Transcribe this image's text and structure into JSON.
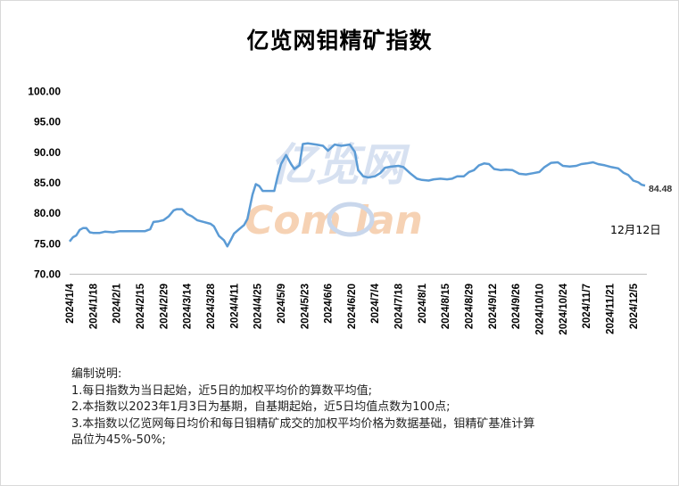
{
  "chart_data": {
    "type": "line",
    "title": "亿览网钼精矿指数",
    "xlabel": "",
    "ylabel": "",
    "ylim": [
      70,
      100
    ],
    "yticks": [
      "100.00",
      "95.00",
      "90.00",
      "85.00",
      "80.00",
      "75.00",
      "70.00"
    ],
    "xticks": [
      "2024/1/4",
      "2024/1/18",
      "2024/2/1",
      "2024/2/15",
      "2024/2/29",
      "2024/3/14",
      "2024/3/28",
      "2024/4/11",
      "2024/4/25",
      "2024/5/9",
      "2024/5/23",
      "2024/6/6",
      "2024/6/20",
      "2024/7/4",
      "2024/7/18",
      "2024/8/1",
      "2024/8/15",
      "2024/8/29",
      "2024/9/12",
      "2024/9/26",
      "2024/10/10",
      "2024/10/24",
      "2024/11/7",
      "2024/11/21",
      "2024/12/5"
    ],
    "grid": false,
    "line_color": "#5b9bd5",
    "series": [
      {
        "name": "",
        "points": [
          [
            "2024/1/4",
            75.3
          ],
          [
            "2024/1/6",
            76.0
          ],
          [
            "2024/1/8",
            76.3
          ],
          [
            "2024/1/10",
            77.2
          ],
          [
            "2024/1/12",
            77.5
          ],
          [
            "2024/1/14",
            77.5
          ],
          [
            "2024/1/16",
            76.8
          ],
          [
            "2024/1/18",
            76.7
          ],
          [
            "2024/1/22",
            76.7
          ],
          [
            "2024/1/25",
            76.9
          ],
          [
            "2024/1/30",
            76.8
          ],
          [
            "2024/2/3",
            77.0
          ],
          [
            "2024/2/10",
            77.0
          ],
          [
            "2024/2/15",
            77.0
          ],
          [
            "2024/2/18",
            77.0
          ],
          [
            "2024/2/21",
            77.3
          ],
          [
            "2024/2/23",
            78.5
          ],
          [
            "2024/2/26",
            78.6
          ],
          [
            "2024/2/29",
            78.8
          ],
          [
            "2024/3/3",
            79.4
          ],
          [
            "2024/3/6",
            80.4
          ],
          [
            "2024/3/8",
            80.6
          ],
          [
            "2024/3/11",
            80.6
          ],
          [
            "2024/3/14",
            79.8
          ],
          [
            "2024/3/17",
            79.4
          ],
          [
            "2024/3/20",
            78.8
          ],
          [
            "2024/3/24",
            78.5
          ],
          [
            "2024/3/28",
            78.2
          ],
          [
            "2024/3/30",
            77.8
          ],
          [
            "2024/4/2",
            76.2
          ],
          [
            "2024/4/5",
            75.5
          ],
          [
            "2024/4/7",
            74.5
          ],
          [
            "2024/4/9",
            75.5
          ],
          [
            "2024/4/11",
            76.6
          ],
          [
            "2024/4/14",
            77.3
          ],
          [
            "2024/4/17",
            78.0
          ],
          [
            "2024/4/19",
            79.0
          ],
          [
            "2024/4/22",
            83.0
          ],
          [
            "2024/4/24",
            84.7
          ],
          [
            "2024/4/26",
            84.4
          ],
          [
            "2024/4/28",
            83.6
          ],
          [
            "2024/5/1",
            83.6
          ],
          [
            "2024/5/5",
            83.6
          ],
          [
            "2024/5/7",
            86.0
          ],
          [
            "2024/5/9",
            88.0
          ],
          [
            "2024/5/12",
            89.5
          ],
          [
            "2024/5/15",
            88.0
          ],
          [
            "2024/5/17",
            87.2
          ],
          [
            "2024/5/20",
            87.8
          ],
          [
            "2024/5/22",
            91.3
          ],
          [
            "2024/5/25",
            91.4
          ],
          [
            "2024/5/30",
            91.2
          ],
          [
            "2024/6/3",
            91.0
          ],
          [
            "2024/6/6",
            90.2
          ],
          [
            "2024/6/10",
            91.2
          ],
          [
            "2024/6/14",
            91.0
          ],
          [
            "2024/6/19",
            91.2
          ],
          [
            "2024/6/22",
            90.0
          ],
          [
            "2024/6/24",
            87.0
          ],
          [
            "2024/6/27",
            86.0
          ],
          [
            "2024/6/30",
            85.8
          ],
          [
            "2024/7/4",
            86.0
          ],
          [
            "2024/7/7",
            86.5
          ],
          [
            "2024/7/10",
            87.4
          ],
          [
            "2024/7/14",
            87.6
          ],
          [
            "2024/7/18",
            87.7
          ],
          [
            "2024/7/21",
            87.5
          ],
          [
            "2024/7/25",
            86.5
          ],
          [
            "2024/7/29",
            85.6
          ],
          [
            "2024/8/1",
            85.4
          ],
          [
            "2024/8/5",
            85.3
          ],
          [
            "2024/8/8",
            85.5
          ],
          [
            "2024/8/12",
            85.6
          ],
          [
            "2024/8/16",
            85.5
          ],
          [
            "2024/8/19",
            85.6
          ],
          [
            "2024/8/22",
            86.0
          ],
          [
            "2024/8/26",
            86.0
          ],
          [
            "2024/8/29",
            86.7
          ],
          [
            "2024/9/1",
            87.0
          ],
          [
            "2024/9/4",
            87.8
          ],
          [
            "2024/9/7",
            88.1
          ],
          [
            "2024/9/10",
            88.0
          ],
          [
            "2024/9/13",
            87.2
          ],
          [
            "2024/9/17",
            87.0
          ],
          [
            "2024/9/20",
            87.1
          ],
          [
            "2024/9/24",
            87.0
          ],
          [
            "2024/9/28",
            86.4
          ],
          [
            "2024/10/2",
            86.3
          ],
          [
            "2024/10/6",
            86.5
          ],
          [
            "2024/10/10",
            86.7
          ],
          [
            "2024/10/13",
            87.5
          ],
          [
            "2024/10/17",
            88.2
          ],
          [
            "2024/10/21",
            88.3
          ],
          [
            "2024/10/24",
            87.7
          ],
          [
            "2024/10/28",
            87.6
          ],
          [
            "2024/11/1",
            87.7
          ],
          [
            "2024/11/4",
            88.0
          ],
          [
            "2024/11/7",
            88.1
          ],
          [
            "2024/11/11",
            88.3
          ],
          [
            "2024/11/14",
            88.0
          ],
          [
            "2024/11/18",
            87.8
          ],
          [
            "2024/11/22",
            87.5
          ],
          [
            "2024/11/26",
            87.3
          ],
          [
            "2024/11/29",
            86.6
          ],
          [
            "2024/12/2",
            86.2
          ],
          [
            "2024/12/5",
            85.3
          ],
          [
            "2024/12/8",
            85.0
          ],
          [
            "2024/12/10",
            84.6
          ],
          [
            "2024/12/12",
            84.48
          ]
        ]
      }
    ],
    "last_value_label": "84.48",
    "date_label": "12月12日",
    "watermark": {
      "line1": "亿览网",
      "line2": "Com  lan"
    }
  },
  "notes": {
    "heading": "编制说明:",
    "items": [
      "1.每日指数为当日起始，近5日的加权平均价的算数平均值;",
      "2.本指数以2023年1月3日为基期，自基期起始，近5日均值点数为100点;",
      "3.本指数以亿览网每日均价和每日钼精矿成交的加权平均价格为数据基础，钼精矿基准计算",
      "品位为45%-50%;"
    ]
  }
}
